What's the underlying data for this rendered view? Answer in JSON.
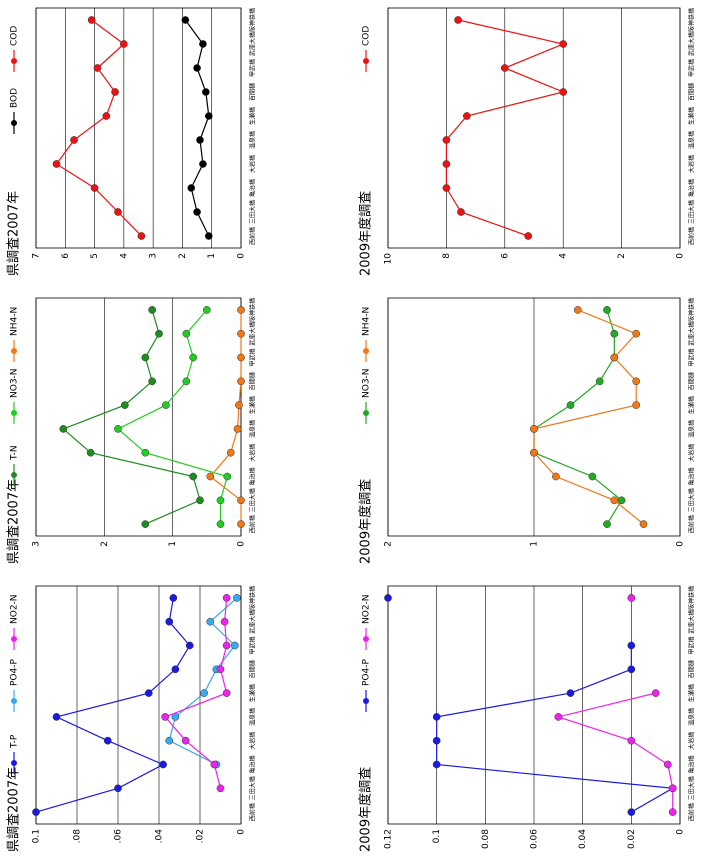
{
  "chart_data": [
    {
      "type": "line",
      "title": "県調査2007年",
      "categories": [
        "西前橋",
        "三田大橋",
        "亀治橋",
        "大岩橋",
        "温泉橋",
        "生瀬橋",
        "百間樋",
        "甲武橋",
        "武庫大橋",
        "阪神鉄橋"
      ],
      "series": [
        {
          "name": "BOD",
          "color": "#000000",
          "values": [
            1.1,
            1.5,
            1.7,
            1.3,
            1.4,
            1.1,
            1.2,
            1.5,
            1.3,
            1.9
          ]
        },
        {
          "name": "COD",
          "color": "#ee1111",
          "values": [
            3.4,
            4.2,
            5.0,
            6.3,
            5.7,
            4.6,
            4.3,
            4.9,
            4.0,
            5.1
          ]
        }
      ],
      "ylim": [
        0,
        7
      ],
      "yticks": [
        0,
        1,
        2,
        3,
        4,
        5,
        6,
        7
      ],
      "grid": true
    },
    {
      "type": "line",
      "title": "県調査2007年",
      "categories": [
        "西前橋",
        "三田大橋",
        "亀治橋",
        "大岩橋",
        "温泉橋",
        "生瀬橋",
        "百間樋",
        "甲武橋",
        "武庫大橋",
        "阪神鉄橋"
      ],
      "series": [
        {
          "name": "T-N",
          "color": "#1e8c1e",
          "values": [
            1.4,
            0.6,
            0.7,
            2.2,
            2.6,
            1.7,
            1.3,
            1.4,
            1.2,
            1.3
          ]
        },
        {
          "name": "NO3-N",
          "color": "#22cc22",
          "values": [
            0.3,
            0.3,
            0.2,
            1.4,
            1.8,
            1.1,
            0.8,
            0.7,
            0.8,
            0.5
          ]
        },
        {
          "name": "NH4-N",
          "color": "#f07818",
          "values": [
            0.0,
            0.0,
            0.45,
            0.15,
            0.05,
            0.03,
            0.0,
            0.0,
            0.0,
            0.0
          ]
        }
      ],
      "ylim": [
        0,
        3
      ],
      "yticks": [
        0,
        1,
        2,
        3
      ],
      "grid": true
    },
    {
      "type": "line",
      "title": "県調査2007年",
      "categories": [
        "西前橋",
        "三田大橋",
        "亀治橋",
        "大岩橋",
        "温泉橋",
        "生瀬橋",
        "百間樋",
        "甲武橋",
        "武庫大橋",
        "阪神鉄橋"
      ],
      "series": [
        {
          "name": "T-P",
          "color": "#1a1ae0",
          "values": [
            0.1,
            0.06,
            0.038,
            0.065,
            0.09,
            0.045,
            0.032,
            0.025,
            0.035,
            0.033
          ]
        },
        {
          "name": "PO4-P",
          "color": "#3aa8f0",
          "values": [
            null,
            null,
            0.012,
            0.035,
            0.032,
            0.018,
            0.012,
            0.003,
            0.015,
            0.002
          ]
        },
        {
          "name": "NO2-N",
          "color": "#ee22ee",
          "values": [
            null,
            0.01,
            0.013,
            0.027,
            0.037,
            0.007,
            0.01,
            0.007,
            0.008,
            0.007
          ]
        }
      ],
      "ylim": [
        0,
        0.1
      ],
      "yticks": [
        0,
        {
          "value": 0.02,
          "label": ".02"
        },
        {
          "value": 0.04,
          "label": ".04"
        },
        {
          "value": 0.06,
          "label": ".06"
        },
        {
          "value": 0.08,
          "label": ".08"
        },
        0.1
      ],
      "grid": true
    },
    {
      "type": "line",
      "title": "2009年度調査",
      "categories": [
        "西前橋",
        "三田大橋",
        "亀治橋",
        "大岩橋",
        "温泉橋",
        "生瀬橋",
        "百間樋",
        "甲武橋",
        "武庫大橋",
        "阪神鉄橋"
      ],
      "series": [
        {
          "name": "COD",
          "color": "#ee1111",
          "values": [
            5.2,
            7.5,
            8,
            8,
            8,
            7.3,
            4,
            6,
            4,
            7.6
          ]
        }
      ],
      "ylim": [
        0,
        10
      ],
      "yticks": [
        0,
        2,
        4,
        6,
        8,
        10
      ],
      "grid": true
    },
    {
      "type": "line",
      "title": "2009年度調査",
      "categories": [
        "西前橋",
        "三田大橋",
        "亀治橋",
        "大岩橋",
        "温泉橋",
        "生瀬橋",
        "百間樋",
        "甲武橋",
        "武庫大橋",
        "阪神鉄橋"
      ],
      "series": [
        {
          "name": "NO3-N",
          "color": "#22aa22",
          "values": [
            0.5,
            0.4,
            0.6,
            1.0,
            1.0,
            0.75,
            0.55,
            0.45,
            0.45,
            0.5
          ]
        },
        {
          "name": "NH4-N",
          "color": "#f07818",
          "values": [
            0.25,
            0.45,
            0.85,
            1.0,
            1.0,
            0.3,
            0.3,
            0.45,
            0.3,
            0.7
          ]
        }
      ],
      "ylim": [
        0,
        2
      ],
      "yticks": [
        0,
        1,
        2
      ],
      "grid": true
    },
    {
      "type": "line",
      "title": "2009年度調査",
      "categories": [
        "西前橋",
        "三田大橋",
        "亀治橋",
        "大岩橋",
        "温泉橋",
        "生瀬橋",
        "百間樋",
        "甲武橋",
        "武庫大橋",
        "阪神鉄橋"
      ],
      "series": [
        {
          "name": "PO4-P",
          "color": "#1a1ae0",
          "values": [
            0.02,
            0.003,
            0.1,
            0.1,
            0.1,
            0.045,
            0.02,
            0.02,
            null,
            0.12
          ]
        },
        {
          "name": "NO2-N",
          "color": "#ee22ee",
          "values": [
            0.003,
            0.003,
            0.005,
            0.02,
            0.05,
            0.01,
            null,
            null,
            null,
            0.02
          ]
        }
      ],
      "ylim": [
        0,
        0.12
      ],
      "yticks": [
        0,
        0.02,
        0.04,
        0.06,
        0.08,
        0.1,
        0.12
      ],
      "grid": true
    }
  ]
}
